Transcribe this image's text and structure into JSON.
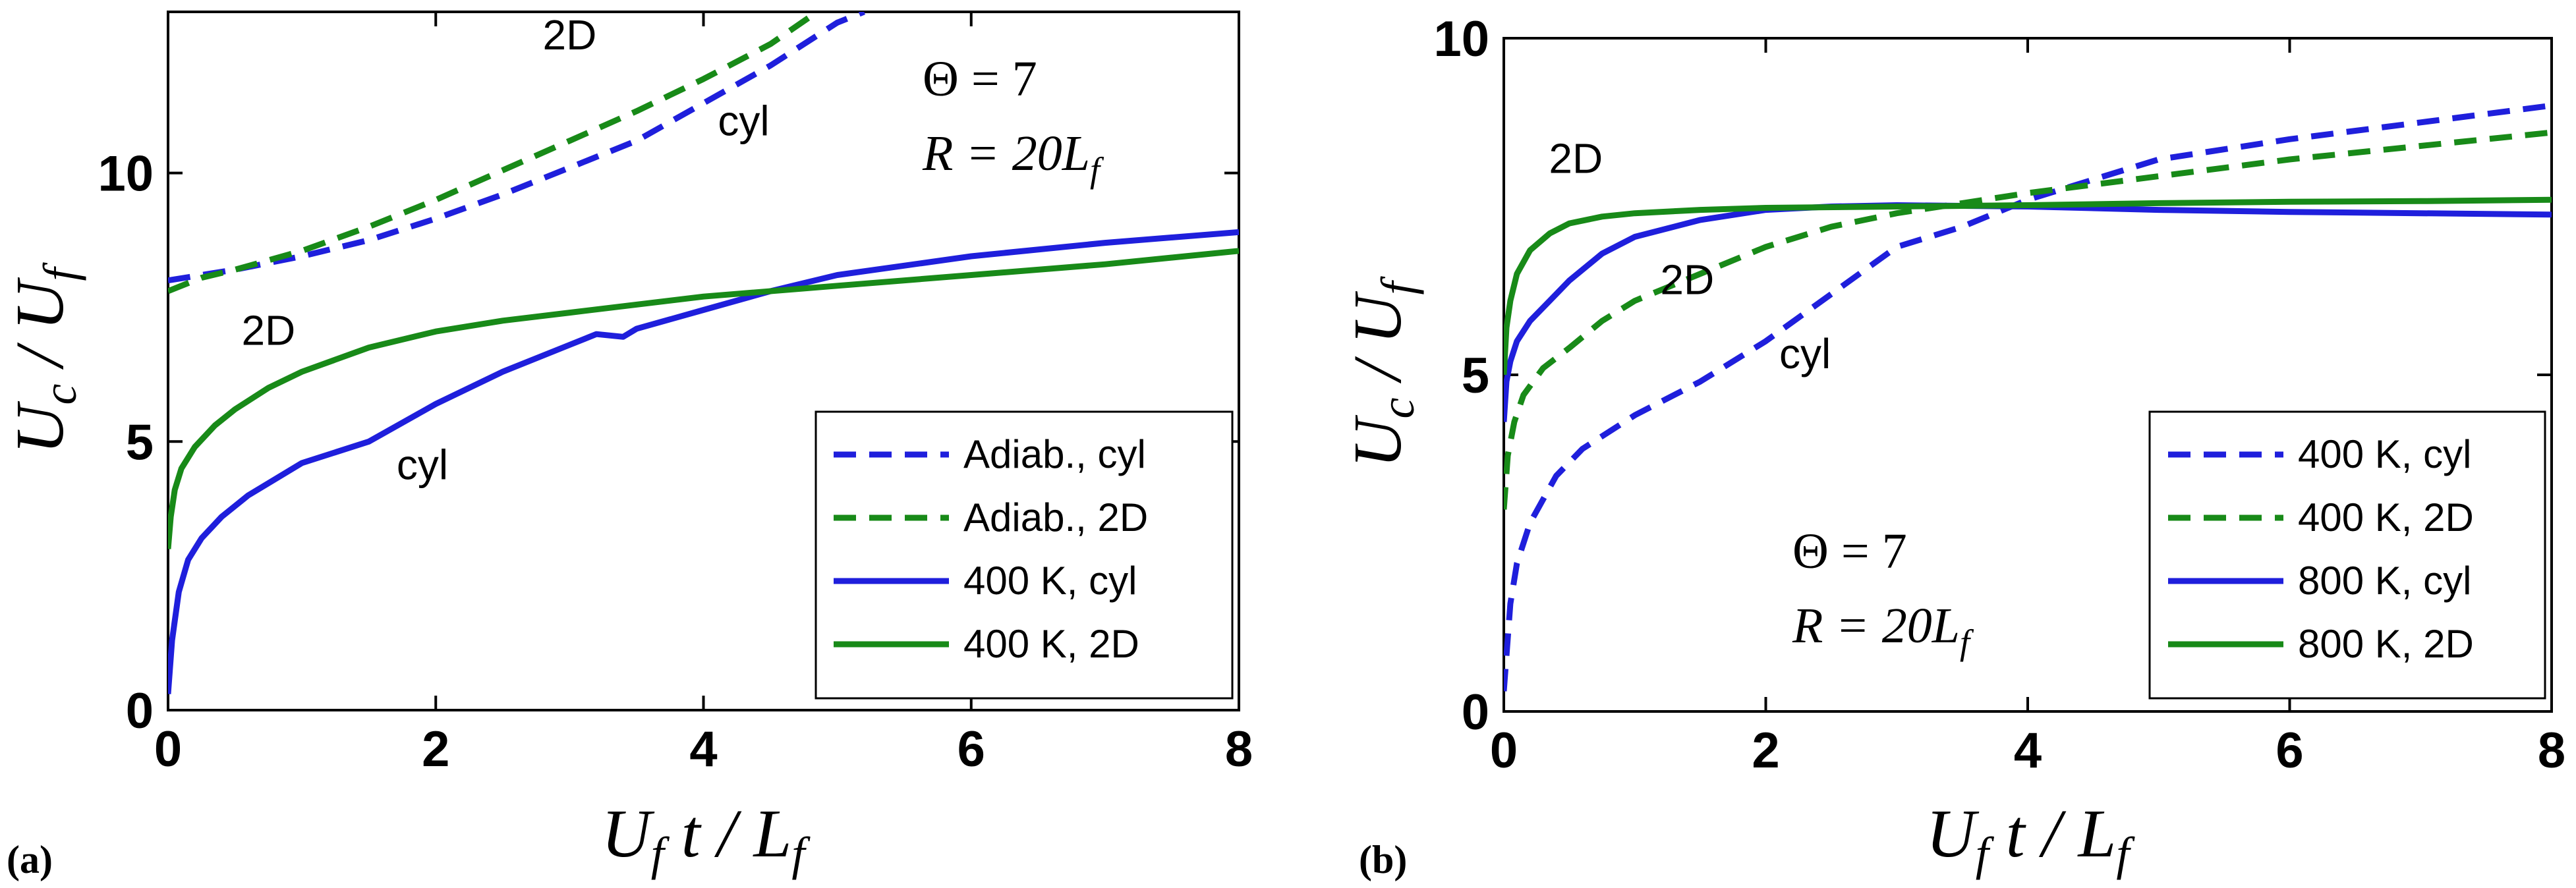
{
  "colors": {
    "blue": "#1f1fdc",
    "green": "#188a18"
  },
  "chart_data": [
    {
      "type": "line",
      "panel_label": "(a)",
      "xlabel": {
        "main": "U",
        "sub1": "f",
        "mid": " t / L",
        "sub2": "f"
      },
      "ylabel": {
        "main": "U",
        "sub1": "c",
        "mid": " / U",
        "sub2": "f"
      },
      "xlim": [
        0,
        8
      ],
      "ylim": [
        0,
        13
      ],
      "xticks": [
        0,
        2,
        4,
        6,
        8
      ],
      "yticks": [
        0,
        5,
        10
      ],
      "params": [
        "Θ = 7",
        "R = 20L",
        "f"
      ],
      "annotations": [
        {
          "text": "2D",
          "x": 3.0,
          "y": 12.3
        },
        {
          "text": "cyl",
          "x": 4.3,
          "y": 10.7
        },
        {
          "text": "2D",
          "x": 0.75,
          "y": 6.8
        },
        {
          "text": "cyl",
          "x": 1.9,
          "y": 4.3
        }
      ],
      "series": [
        {
          "name": "Adiab., cyl",
          "color": "blue",
          "style": "dashed",
          "x": [
            0,
            0.25,
            0.5,
            1.0,
            1.5,
            2.0,
            2.5,
            3.0,
            3.5,
            4.0,
            4.5,
            5.0,
            5.2
          ],
          "y": [
            8.0,
            8.1,
            8.2,
            8.45,
            8.75,
            9.15,
            9.6,
            10.1,
            10.6,
            11.3,
            12.0,
            12.8,
            13.0
          ]
        },
        {
          "name": "Adiab., 2D",
          "color": "green",
          "style": "dashed",
          "x": [
            0,
            0.25,
            0.5,
            1.0,
            1.5,
            2.0,
            2.5,
            3.0,
            3.5,
            4.0,
            4.5,
            4.85
          ],
          "y": [
            7.8,
            8.05,
            8.2,
            8.55,
            9.0,
            9.5,
            10.05,
            10.6,
            11.15,
            11.75,
            12.4,
            13.0
          ]
        },
        {
          "name": "400 K, cyl",
          "color": "blue",
          "style": "solid",
          "x": [
            0,
            0.03,
            0.08,
            0.15,
            0.25,
            0.4,
            0.6,
            0.8,
            1.0,
            1.5,
            2.0,
            2.5,
            3.0,
            3.2,
            3.4,
            3.5,
            4.0,
            4.5,
            5.0,
            6.0,
            7.0,
            8.0
          ],
          "y": [
            0.3,
            1.3,
            2.2,
            2.8,
            3.2,
            3.6,
            4.0,
            4.3,
            4.6,
            5.0,
            5.7,
            6.3,
            6.8,
            7.0,
            6.95,
            7.1,
            7.45,
            7.8,
            8.1,
            8.45,
            8.7,
            8.9
          ]
        },
        {
          "name": "400 K, 2D",
          "color": "green",
          "style": "solid",
          "x": [
            0,
            0.02,
            0.05,
            0.1,
            0.2,
            0.35,
            0.5,
            0.75,
            1.0,
            1.5,
            2.0,
            2.5,
            3.0,
            4.0,
            5.0,
            6.0,
            7.0,
            8.0
          ],
          "y": [
            3.0,
            3.6,
            4.1,
            4.5,
            4.9,
            5.3,
            5.6,
            6.0,
            6.3,
            6.75,
            7.05,
            7.25,
            7.4,
            7.7,
            7.9,
            8.1,
            8.3,
            8.55
          ]
        }
      ],
      "legend": {
        "position": "bottom-right"
      }
    },
    {
      "type": "line",
      "panel_label": "(b)",
      "xlabel": {
        "main": "U",
        "sub1": "f",
        "mid": " t / L",
        "sub2": "f"
      },
      "ylabel": {
        "main": "U",
        "sub1": "c",
        "mid": " / U",
        "sub2": "f"
      },
      "xlim": [
        0,
        8
      ],
      "ylim": [
        0,
        10
      ],
      "xticks": [
        0,
        2,
        4,
        6,
        8
      ],
      "yticks": [
        0,
        5,
        10
      ],
      "params": [
        "Θ = 7",
        "R = 20L",
        "f"
      ],
      "annotations": [
        {
          "text": "2D",
          "x": 0.55,
          "y": 8.0
        },
        {
          "text": "2D",
          "x": 1.4,
          "y": 6.2
        },
        {
          "text": "cyl",
          "x": 2.3,
          "y": 5.1
        }
      ],
      "series": [
        {
          "name": "400 K, cyl",
          "color": "blue",
          "style": "dashed",
          "x": [
            0,
            0.05,
            0.1,
            0.2,
            0.4,
            0.6,
            1.0,
            1.5,
            2.0,
            2.5,
            3.0,
            3.5,
            4.0,
            4.5,
            5.0,
            6.0,
            7.0,
            8.0
          ],
          "y": [
            0.3,
            1.6,
            2.2,
            2.8,
            3.5,
            3.9,
            4.4,
            4.9,
            5.5,
            6.2,
            6.9,
            7.2,
            7.6,
            7.9,
            8.2,
            8.5,
            8.75,
            9.0
          ]
        },
        {
          "name": "400 K, 2D",
          "color": "green",
          "style": "dashed",
          "x": [
            0,
            0.03,
            0.08,
            0.15,
            0.3,
            0.5,
            0.75,
            1.0,
            1.5,
            2.0,
            2.5,
            3.0,
            3.5,
            4.0,
            5.0,
            6.0,
            7.0,
            8.0
          ],
          "y": [
            3.0,
            3.8,
            4.3,
            4.7,
            5.1,
            5.4,
            5.8,
            6.1,
            6.5,
            6.9,
            7.2,
            7.4,
            7.55,
            7.7,
            7.95,
            8.2,
            8.4,
            8.6
          ]
        },
        {
          "name": "800 K, cyl",
          "color": "blue",
          "style": "solid",
          "x": [
            0,
            0.02,
            0.05,
            0.1,
            0.2,
            0.35,
            0.5,
            0.75,
            1.0,
            1.5,
            2.0,
            2.5,
            3.0,
            4.0,
            5.0,
            6.0,
            7.0,
            8.0
          ],
          "y": [
            4.3,
            4.9,
            5.2,
            5.5,
            5.8,
            6.1,
            6.4,
            6.8,
            7.05,
            7.3,
            7.45,
            7.5,
            7.52,
            7.5,
            7.45,
            7.42,
            7.4,
            7.38
          ]
        },
        {
          "name": "800 K, 2D",
          "color": "green",
          "style": "solid",
          "x": [
            0,
            0.02,
            0.05,
            0.1,
            0.2,
            0.35,
            0.5,
            0.75,
            1.0,
            1.5,
            2.0,
            3.0,
            4.0,
            5.0,
            6.0,
            7.0,
            8.0
          ],
          "y": [
            5.0,
            5.7,
            6.1,
            6.5,
            6.85,
            7.1,
            7.25,
            7.35,
            7.4,
            7.45,
            7.48,
            7.5,
            7.52,
            7.55,
            7.57,
            7.58,
            7.6
          ]
        }
      ],
      "legend": {
        "position": "bottom-right"
      }
    }
  ]
}
